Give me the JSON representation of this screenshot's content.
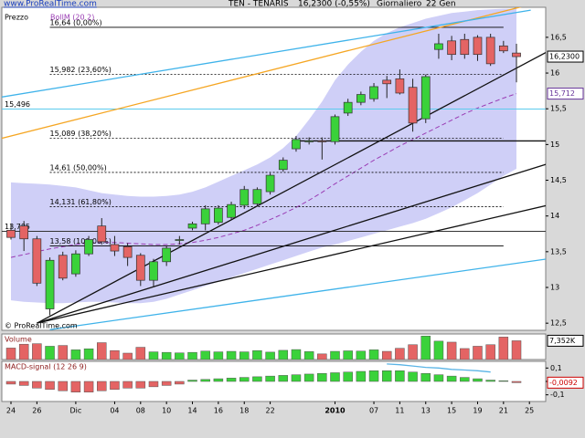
{
  "header": {
    "site": "www.ProRealTime.com",
    "title": "TEN - TENARIS",
    "quote": "16,2300 (-0,55%)",
    "period": "Giornaliero",
    "date": "22 Gen"
  },
  "chart_data": [
    {
      "type": "candlestick",
      "label": "Prezzo",
      "credit": "© ProRealTime.com",
      "categories": [
        "24",
        null,
        "26",
        null,
        null,
        "Dic",
        null,
        null,
        "04",
        null,
        "08",
        null,
        "10",
        null,
        "14",
        null,
        "16",
        null,
        "18",
        null,
        "22",
        null,
        null,
        null,
        null,
        "2010",
        null,
        null,
        "07",
        null,
        "11",
        null,
        "13",
        null,
        "15",
        null,
        "19",
        null,
        "21",
        null,
        "25"
      ],
      "open": [
        13.8,
        13.86,
        13.68,
        12.7,
        13.45,
        13.19,
        13.47,
        13.86,
        13.6,
        13.57,
        13.45,
        13.1,
        13.36,
        13.66,
        13.83,
        13.89,
        13.91,
        13.98,
        14.15,
        14.17,
        14.34,
        14.65,
        14.94,
        15.04,
        15.05,
        15.04,
        15.44,
        15.59,
        15.64,
        15.9,
        15.92,
        15.8,
        15.36,
        16.33,
        16.45,
        16.47,
        16.5,
        16.5,
        16.38,
        16.28,
        null
      ],
      "high": [
        13.89,
        13.93,
        13.72,
        13.42,
        13.5,
        13.52,
        13.72,
        13.97,
        13.72,
        13.62,
        13.48,
        13.4,
        13.58,
        13.72,
        13.92,
        14.15,
        14.15,
        14.2,
        14.42,
        14.4,
        14.6,
        14.82,
        15.12,
        15.1,
        15.1,
        15.42,
        15.64,
        15.74,
        15.86,
        15.96,
        16.05,
        15.92,
        15.98,
        16.55,
        16.52,
        16.55,
        16.53,
        16.55,
        16.45,
        16.41,
        null
      ],
      "low": [
        13.67,
        13.51,
        13.02,
        12.61,
        13.1,
        13.15,
        13.44,
        13.6,
        13.44,
        13.3,
        13.02,
        13.0,
        13.3,
        13.6,
        13.8,
        13.8,
        13.88,
        13.95,
        14.1,
        14.15,
        14.3,
        14.62,
        14.9,
        15.0,
        14.79,
        15.0,
        15.4,
        15.55,
        15.6,
        15.65,
        15.7,
        15.18,
        15.3,
        16.2,
        16.18,
        16.2,
        16.17,
        16.1,
        16.28,
        15.87,
        null
      ],
      "close": [
        13.7,
        13.68,
        13.06,
        13.38,
        13.13,
        13.47,
        13.67,
        13.64,
        13.51,
        13.42,
        13.1,
        13.36,
        13.55,
        13.67,
        13.89,
        14.1,
        14.11,
        14.16,
        14.37,
        14.37,
        14.57,
        14.78,
        15.07,
        15.05,
        15.04,
        15.39,
        15.59,
        15.7,
        15.81,
        15.85,
        15.72,
        15.3,
        15.95,
        16.41,
        16.26,
        16.26,
        16.26,
        16.13,
        16.31,
        16.23,
        null
      ],
      "up_color": "#3ad23a",
      "down_color": "#e46464",
      "ylim": [
        12.4,
        16.92
      ],
      "yticks": [
        {
          "value": 16.5,
          "label": "16,5"
        },
        16,
        {
          "value": 15.5,
          "label": "15,5"
        },
        15,
        {
          "value": 14.5,
          "label": "14,5"
        },
        14,
        {
          "value": 13.5,
          "label": "13,5"
        },
        13,
        {
          "value": 12.5,
          "label": "12,5"
        }
      ],
      "bands": {
        "name": "BollM (20 2)",
        "fill": "#cfcff7",
        "color": "#9a3cb4",
        "upper": [
          14.47,
          14.46,
          14.45,
          14.44,
          14.42,
          14.4,
          14.36,
          14.32,
          14.3,
          14.28,
          14.27,
          14.27,
          14.28,
          14.3,
          14.34,
          14.4,
          14.48,
          14.56,
          14.64,
          14.72,
          14.82,
          14.95,
          15.12,
          15.35,
          15.6,
          15.9,
          16.12,
          16.3,
          16.45,
          16.56,
          16.64,
          16.7,
          16.76,
          16.8,
          16.84,
          16.86,
          16.88,
          16.89,
          16.9,
          16.9,
          null
        ],
        "middle": [
          13.42,
          13.46,
          13.5,
          13.54,
          13.57,
          13.6,
          13.62,
          13.63,
          13.63,
          13.62,
          13.61,
          13.6,
          13.6,
          13.61,
          13.63,
          13.66,
          13.7,
          13.75,
          13.8,
          13.87,
          13.95,
          14.03,
          14.12,
          14.22,
          14.33,
          14.45,
          14.56,
          14.67,
          14.78,
          14.88,
          14.98,
          15.07,
          15.16,
          15.25,
          15.34,
          15.43,
          15.51,
          15.58,
          15.65,
          15.712,
          null
        ],
        "lower": [
          12.82,
          12.8,
          12.79,
          12.78,
          12.78,
          12.79,
          12.8,
          12.8,
          12.79,
          12.78,
          12.78,
          12.8,
          12.84,
          12.9,
          12.96,
          13.02,
          13.08,
          13.14,
          13.2,
          13.26,
          13.32,
          13.38,
          13.44,
          13.5,
          13.56,
          13.6,
          13.65,
          13.7,
          13.75,
          13.8,
          13.85,
          13.9,
          13.96,
          14.04,
          14.12,
          14.22,
          14.32,
          14.44,
          14.56,
          14.66,
          null
        ]
      },
      "levels": [
        {
          "value": 16.64,
          "label": "16,64 (0,00%)"
        },
        {
          "value": 15.982,
          "label": "15,982 (23,60%)"
        },
        {
          "value": 15.089,
          "label": "15,089 (38,20%)"
        },
        {
          "value": 14.61,
          "label": "14,61 (50,00%)"
        },
        {
          "value": 14.131,
          "label": "14,131 (61,80%)"
        },
        {
          "value": 13.58,
          "label": "13,58 (100,00%)"
        }
      ],
      "hlines": [
        {
          "value": 15.496,
          "label": "15,496",
          "color": "#5ccbee"
        },
        {
          "value": 13.785,
          "label": "13,785",
          "color": "#333333"
        }
      ],
      "trendlines": [
        {
          "color": "#f5a623",
          "points": [
            [
              -0.85,
              15.08
            ],
            [
              40.1,
              16.96
            ]
          ]
        },
        {
          "color": "#3fb3ea",
          "points": [
            [
              -0.85,
              15.66
            ],
            [
              40.1,
              16.88
            ]
          ]
        },
        {
          "color": "#3fb3ea",
          "points": [
            [
              3,
              12.41
            ],
            [
              41.4,
              13.4
            ]
          ]
        },
        {
          "color": "#111111",
          "points": [
            [
              2,
              12.5
            ],
            [
              41.4,
              16.3
            ]
          ]
        },
        {
          "color": "#111111",
          "points": [
            [
              2,
              12.5
            ],
            [
              41.4,
              14.73
            ]
          ]
        },
        {
          "color": "#111111",
          "points": [
            [
              2,
              12.5
            ],
            [
              41.4,
              14.15
            ]
          ]
        },
        {
          "color": "#111111",
          "points": [
            [
              22,
              15.05
            ],
            [
              41.4,
              15.05
            ]
          ]
        }
      ],
      "markers": [
        {
          "value": 16.23,
          "label": "16,2300",
          "color": "#000000"
        },
        {
          "value": 15.712,
          "label": "15,712",
          "color": "#663399"
        }
      ]
    },
    {
      "type": "bar",
      "label": "Volume",
      "values": [
        4500,
        6000,
        6200,
        5200,
        5500,
        3800,
        4200,
        6600,
        3500,
        2500,
        4800,
        3000,
        2800,
        2600,
        2800,
        3300,
        3000,
        3200,
        3000,
        3500,
        2900,
        3600,
        3900,
        3100,
        2200,
        3200,
        3400,
        3300,
        3800,
        3200,
        4400,
        5800,
        9200,
        7200,
        6800,
        4300,
        5200,
        5800,
        8800,
        7352,
        null
      ],
      "up_color": "#3ad23a",
      "down_color": "#e46464",
      "ylim": [
        0,
        10000
      ],
      "markers": [
        {
          "value": 7352,
          "label": "7,352K",
          "color": "#000000"
        }
      ]
    },
    {
      "type": "bar",
      "label": "MACD-signal (12 26 9)",
      "values": [
        -0.02,
        -0.03,
        -0.05,
        -0.06,
        -0.07,
        -0.08,
        -0.08,
        -0.07,
        -0.06,
        -0.05,
        -0.05,
        -0.04,
        -0.03,
        -0.02,
        0.01,
        0.015,
        0.02,
        0.025,
        0.03,
        0.035,
        0.04,
        0.045,
        0.05,
        0.055,
        0.06,
        0.065,
        0.07,
        0.075,
        0.08,
        0.08,
        0.08,
        0.07,
        0.06,
        0.05,
        0.04,
        0.03,
        0.02,
        0.01,
        0.005,
        -0.0092,
        null
      ],
      "signal": [
        null,
        null,
        null,
        null,
        null,
        null,
        null,
        null,
        null,
        null,
        null,
        null,
        null,
        null,
        null,
        null,
        null,
        null,
        null,
        null,
        null,
        null,
        null,
        null,
        null,
        null,
        null,
        null,
        null,
        0.13,
        0.125,
        0.115,
        0.105,
        0.1,
        0.09,
        0.085,
        0.08,
        0.07,
        null,
        null,
        null
      ],
      "signal_color": "#5ab4e6",
      "up_color": "#3ad23a",
      "down_color": "#e46464",
      "ylim": [
        -0.15,
        0.15
      ],
      "yticks": [
        {
          "value": 0.1,
          "label": "0,1"
        },
        0,
        {
          "value": -0.1,
          "label": "-0,1"
        }
      ],
      "markers": [
        {
          "value": -0.0092,
          "label": "-0,0092",
          "color": "#cc0000"
        }
      ]
    }
  ]
}
